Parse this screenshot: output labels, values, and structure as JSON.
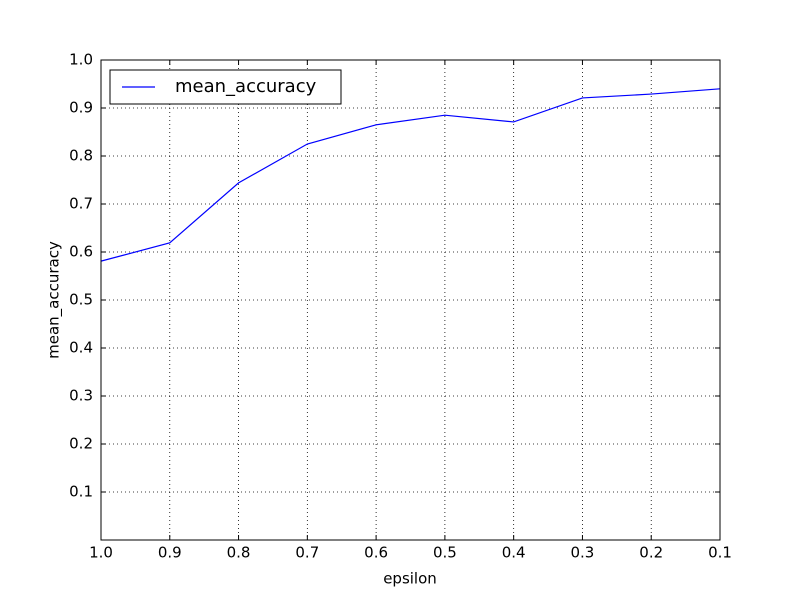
{
  "chart_data": {
    "type": "line",
    "xlabel": "epsilon",
    "ylabel": "mean_accuracy",
    "x": [
      1.0,
      0.9,
      0.8,
      0.7,
      0.6,
      0.5,
      0.4,
      0.3,
      0.2,
      0.1
    ],
    "series": [
      {
        "name": "mean_accuracy",
        "color": "#0000ff",
        "values": [
          0.581,
          0.619,
          0.744,
          0.825,
          0.865,
          0.885,
          0.871,
          0.921,
          0.929,
          0.94
        ]
      }
    ],
    "xlim": [
      1.0,
      0.1
    ],
    "xticks": [
      {
        "value": 1,
        "label": "1.0"
      },
      0.9,
      0.8,
      0.7,
      0.6,
      0.5,
      0.4,
      0.3,
      0.2,
      0.1
    ],
    "ylim": [
      0,
      1
    ],
    "yticks": [
      0.1,
      0.2,
      0.3,
      0.4,
      0.5,
      0.6,
      0.7,
      0.8,
      0.9,
      {
        "value": 1,
        "label": "1.0"
      }
    ],
    "grid": true,
    "legend": "upper left"
  }
}
